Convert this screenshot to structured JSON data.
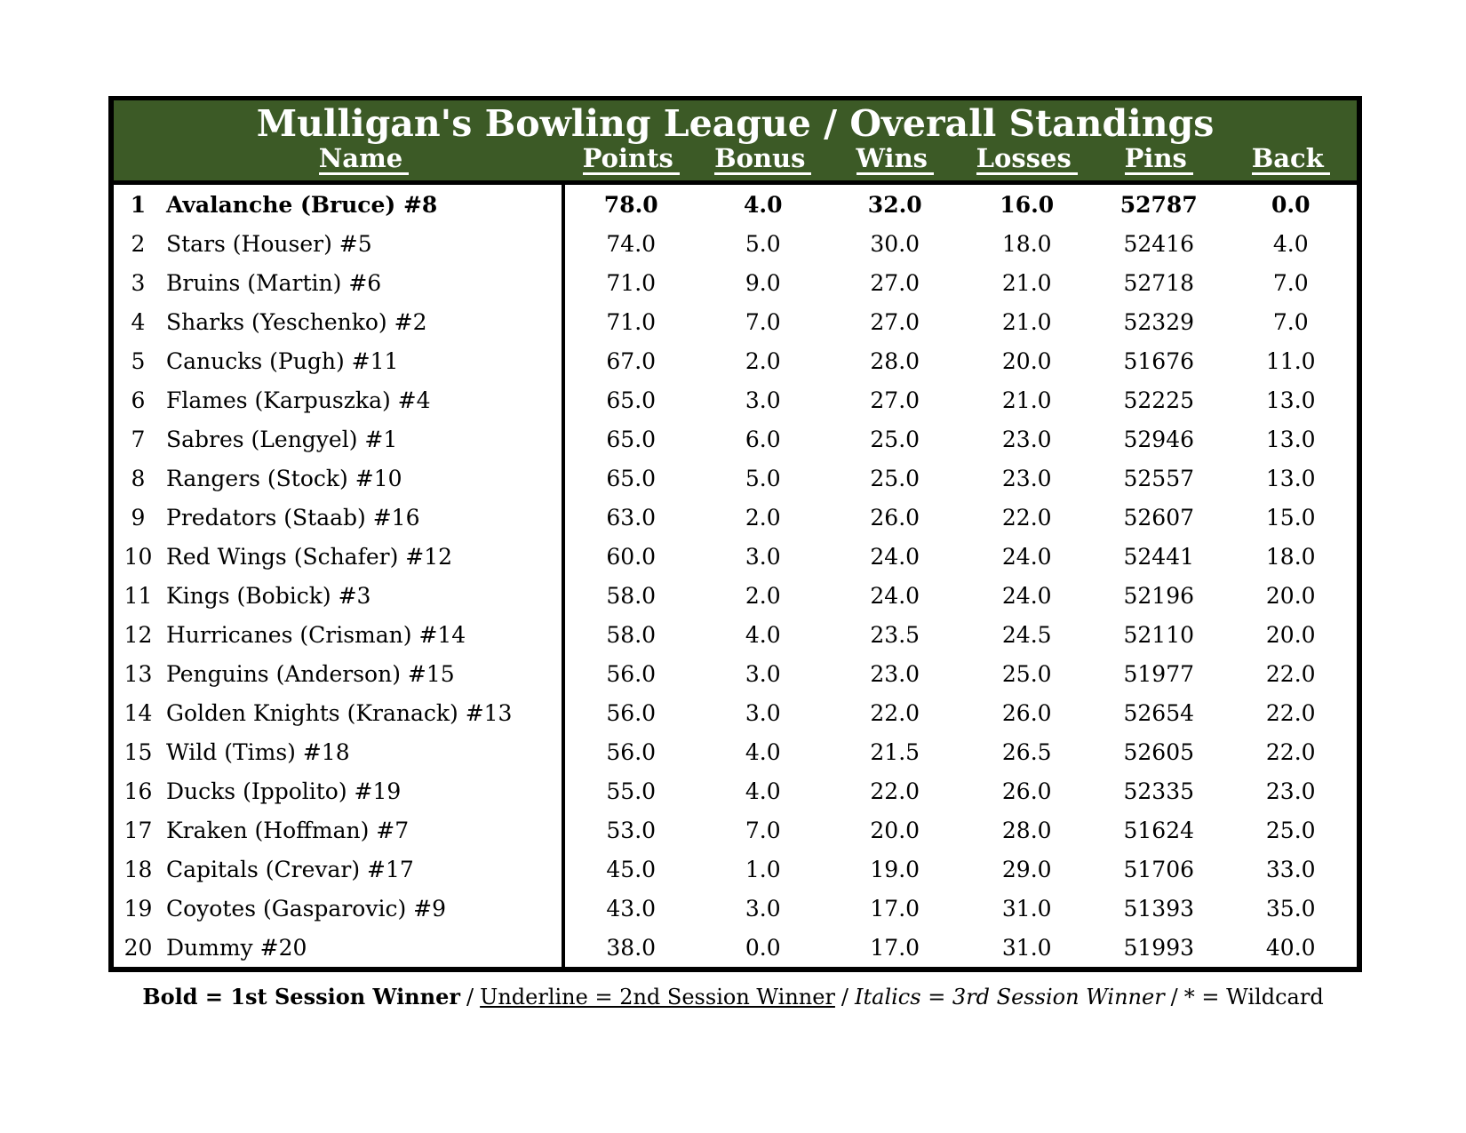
{
  "table": {
    "title": "Mulligan's Bowling League / Overall Standings",
    "columns": {
      "name": "Name",
      "points": "Points",
      "bonus": "Bonus",
      "wins": "Wins",
      "losses": "Losses",
      "pins": "Pins",
      "back": "Back"
    },
    "rows": [
      {
        "rank": "1",
        "name": "Avalanche (Bruce) #8",
        "points": "78.0",
        "bonus": "4.0",
        "wins": "32.0",
        "losses": "16.0",
        "pins": "52787",
        "back": "0.0",
        "bold": true
      },
      {
        "rank": "2",
        "name": "Stars (Houser) #5",
        "points": "74.0",
        "bonus": "5.0",
        "wins": "30.0",
        "losses": "18.0",
        "pins": "52416",
        "back": "4.0",
        "bold": false
      },
      {
        "rank": "3",
        "name": "Bruins (Martin) #6",
        "points": "71.0",
        "bonus": "9.0",
        "wins": "27.0",
        "losses": "21.0",
        "pins": "52718",
        "back": "7.0",
        "bold": false
      },
      {
        "rank": "4",
        "name": "Sharks (Yeschenko) #2",
        "points": "71.0",
        "bonus": "7.0",
        "wins": "27.0",
        "losses": "21.0",
        "pins": "52329",
        "back": "7.0",
        "bold": false
      },
      {
        "rank": "5",
        "name": "Canucks (Pugh) #11",
        "points": "67.0",
        "bonus": "2.0",
        "wins": "28.0",
        "losses": "20.0",
        "pins": "51676",
        "back": "11.0",
        "bold": false
      },
      {
        "rank": "6",
        "name": "Flames (Karpuszka) #4",
        "points": "65.0",
        "bonus": "3.0",
        "wins": "27.0",
        "losses": "21.0",
        "pins": "52225",
        "back": "13.0",
        "bold": false
      },
      {
        "rank": "7",
        "name": "Sabres (Lengyel) #1",
        "points": "65.0",
        "bonus": "6.0",
        "wins": "25.0",
        "losses": "23.0",
        "pins": "52946",
        "back": "13.0",
        "bold": false
      },
      {
        "rank": "8",
        "name": "Rangers (Stock) #10",
        "points": "65.0",
        "bonus": "5.0",
        "wins": "25.0",
        "losses": "23.0",
        "pins": "52557",
        "back": "13.0",
        "bold": false
      },
      {
        "rank": "9",
        "name": "Predators (Staab) #16",
        "points": "63.0",
        "bonus": "2.0",
        "wins": "26.0",
        "losses": "22.0",
        "pins": "52607",
        "back": "15.0",
        "bold": false
      },
      {
        "rank": "10",
        "name": "Red Wings (Schafer) #12",
        "points": "60.0",
        "bonus": "3.0",
        "wins": "24.0",
        "losses": "24.0",
        "pins": "52441",
        "back": "18.0",
        "bold": false
      },
      {
        "rank": "11",
        "name": "Kings (Bobick) #3",
        "points": "58.0",
        "bonus": "2.0",
        "wins": "24.0",
        "losses": "24.0",
        "pins": "52196",
        "back": "20.0",
        "bold": false
      },
      {
        "rank": "12",
        "name": "Hurricanes (Crisman) #14",
        "points": "58.0",
        "bonus": "4.0",
        "wins": "23.5",
        "losses": "24.5",
        "pins": "52110",
        "back": "20.0",
        "bold": false
      },
      {
        "rank": "13",
        "name": "Penguins (Anderson) #15",
        "points": "56.0",
        "bonus": "3.0",
        "wins": "23.0",
        "losses": "25.0",
        "pins": "51977",
        "back": "22.0",
        "bold": false
      },
      {
        "rank": "14",
        "name": "Golden Knights (Kranack) #13",
        "points": "56.0",
        "bonus": "3.0",
        "wins": "22.0",
        "losses": "26.0",
        "pins": "52654",
        "back": "22.0",
        "bold": false
      },
      {
        "rank": "15",
        "name": "Wild (Tims) #18",
        "points": "56.0",
        "bonus": "4.0",
        "wins": "21.5",
        "losses": "26.5",
        "pins": "52605",
        "back": "22.0",
        "bold": false
      },
      {
        "rank": "16",
        "name": "Ducks (Ippolito) #19",
        "points": "55.0",
        "bonus": "4.0",
        "wins": "22.0",
        "losses": "26.0",
        "pins": "52335",
        "back": "23.0",
        "bold": false
      },
      {
        "rank": "17",
        "name": "Kraken (Hoffman) #7",
        "points": "53.0",
        "bonus": "7.0",
        "wins": "20.0",
        "losses": "28.0",
        "pins": "51624",
        "back": "25.0",
        "bold": false
      },
      {
        "rank": "18",
        "name": "Capitals (Crevar) #17",
        "points": "45.0",
        "bonus": "1.0",
        "wins": "19.0",
        "losses": "29.0",
        "pins": "51706",
        "back": "33.0",
        "bold": false
      },
      {
        "rank": "19",
        "name": "Coyotes (Gasparovic) #9",
        "points": "43.0",
        "bonus": "3.0",
        "wins": "17.0",
        "losses": "31.0",
        "pins": "51393",
        "back": "35.0",
        "bold": false
      },
      {
        "rank": "20",
        "name": "Dummy #20",
        "points": "38.0",
        "bonus": "0.0",
        "wins": "17.0",
        "losses": "31.0",
        "pins": "51993",
        "back": "40.0",
        "bold": false
      }
    ]
  },
  "legend": {
    "bold_label": "Bold = 1st Session Winner",
    "separator": "/",
    "underline_label": "Underline = 2nd Session Winner",
    "italic_label": "Italics = 3rd Session Winner",
    "wildcard_label": "* = Wildcard"
  },
  "colors": {
    "header_green": "#3c5a26",
    "border_black": "#000000"
  }
}
